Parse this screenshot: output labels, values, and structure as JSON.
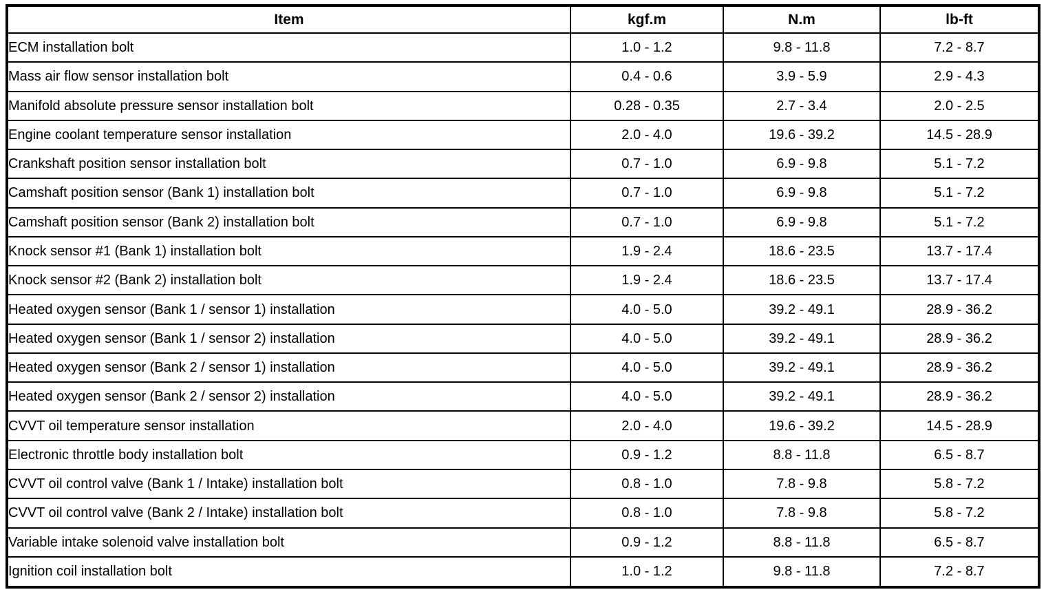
{
  "table": {
    "columns": [
      "Item",
      "kgf.m",
      "N.m",
      "lb-ft"
    ],
    "rows": [
      {
        "item": "ECM installation bolt",
        "kgfm": "1.0 - 1.2",
        "nm": "9.8 - 11.8",
        "lbft": "7.2 - 8.7"
      },
      {
        "item": "Mass air flow sensor installation bolt",
        "kgfm": "0.4 - 0.6",
        "nm": "3.9 - 5.9",
        "lbft": "2.9 - 4.3"
      },
      {
        "item": "Manifold absolute pressure sensor installation bolt",
        "kgfm": "0.28 - 0.35",
        "nm": "2.7 - 3.4",
        "lbft": "2.0 - 2.5"
      },
      {
        "item": "Engine coolant temperature sensor installation",
        "kgfm": "2.0 - 4.0",
        "nm": "19.6 - 39.2",
        "lbft": "14.5 - 28.9"
      },
      {
        "item": "Crankshaft position sensor installation bolt",
        "kgfm": "0.7 - 1.0",
        "nm": "6.9 - 9.8",
        "lbft": "5.1 - 7.2"
      },
      {
        "item": "Camshaft position sensor (Bank 1) installation bolt",
        "kgfm": "0.7 - 1.0",
        "nm": "6.9 - 9.8",
        "lbft": "5.1 - 7.2"
      },
      {
        "item": "Camshaft position sensor (Bank 2) installation bolt",
        "kgfm": "0.7 - 1.0",
        "nm": "6.9 - 9.8",
        "lbft": "5.1 - 7.2"
      },
      {
        "item": "Knock sensor #1 (Bank 1) installation bolt",
        "kgfm": "1.9 - 2.4",
        "nm": "18.6 - 23.5",
        "lbft": "13.7 - 17.4"
      },
      {
        "item": "Knock sensor #2 (Bank 2) installation bolt",
        "kgfm": "1.9 - 2.4",
        "nm": "18.6 - 23.5",
        "lbft": "13.7 - 17.4"
      },
      {
        "item": "Heated oxygen sensor (Bank 1 / sensor 1) installation",
        "kgfm": "4.0 - 5.0",
        "nm": "39.2 - 49.1",
        "lbft": "28.9 - 36.2"
      },
      {
        "item": "Heated oxygen sensor (Bank 1 / sensor 2) installation",
        "kgfm": "4.0 - 5.0",
        "nm": "39.2 - 49.1",
        "lbft": "28.9 - 36.2"
      },
      {
        "item": "Heated oxygen sensor (Bank 2 / sensor 1) installation",
        "kgfm": "4.0 - 5.0",
        "nm": "39.2 - 49.1",
        "lbft": "28.9 - 36.2"
      },
      {
        "item": "Heated oxygen sensor (Bank 2 / sensor 2) installation",
        "kgfm": "4.0 - 5.0",
        "nm": "39.2 - 49.1",
        "lbft": "28.9 - 36.2"
      },
      {
        "item": "CVVT oil temperature sensor installation",
        "kgfm": "2.0 - 4.0",
        "nm": "19.6 - 39.2",
        "lbft": "14.5 - 28.9"
      },
      {
        "item": "Electronic throttle body installation bolt",
        "kgfm": "0.9 - 1.2",
        "nm": "8.8 - 11.8",
        "lbft": "6.5 - 8.7"
      },
      {
        "item": "CVVT oil control valve (Bank 1 / Intake) installation bolt",
        "kgfm": "0.8 - 1.0",
        "nm": "7.8 - 9.8",
        "lbft": "5.8 - 7.2"
      },
      {
        "item": "CVVT oil control valve (Bank 2 / Intake) installation bolt",
        "kgfm": "0.8 - 1.0",
        "nm": "7.8 - 9.8",
        "lbft": "5.8 - 7.2"
      },
      {
        "item": "Variable intake solenoid valve installation bolt",
        "kgfm": "0.9 - 1.2",
        "nm": "8.8 - 11.8",
        "lbft": "6.5 - 8.7"
      },
      {
        "item": "Ignition coil installation bolt",
        "kgfm": "1.0 - 1.2",
        "nm": "9.8 - 11.8",
        "lbft": "7.2 - 8.7"
      }
    ],
    "colors": {
      "border": "#000000",
      "background": "#ffffff",
      "text": "#000000"
    }
  }
}
